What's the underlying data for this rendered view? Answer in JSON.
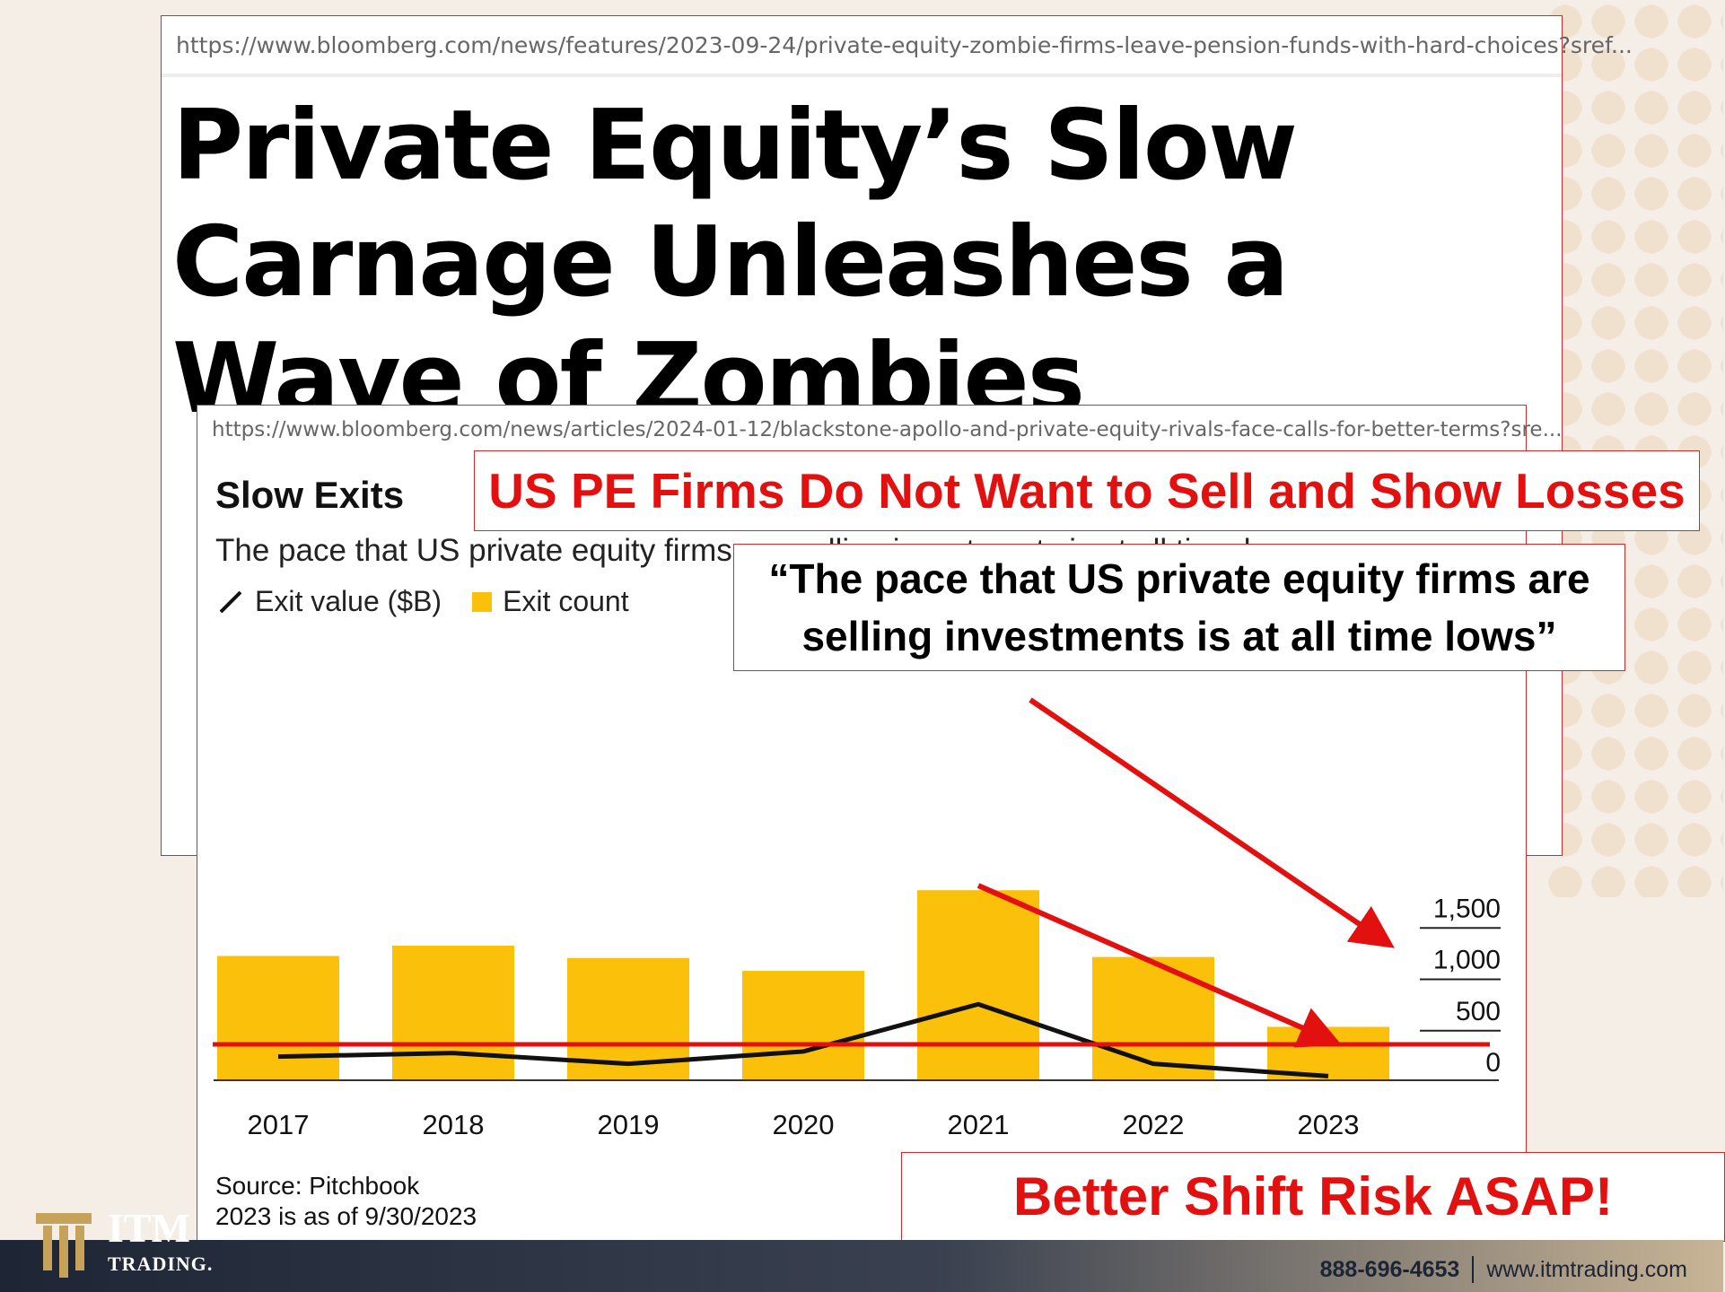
{
  "article1": {
    "url": "https://www.bloomberg.com/news/features/2023-09-24/private-equity-zombie-firms-leave-pension-funds-with-hard-choices?sref...",
    "headline": "Private Equity’s Slow Carnage Unleashes a Wave of Zombies"
  },
  "article2": {
    "url": "https://www.bloomberg.com/news/articles/2024-01-12/blackstone-apollo-and-private-equity-rivals-face-calls-for-better-terms?sre..."
  },
  "chart_data": {
    "type": "bar",
    "title": "Slow Exits",
    "subtitle": "The pace that US private equity firms are selling investments is at all time lows",
    "categories": [
      "2017",
      "2018",
      "2019",
      "2020",
      "2021",
      "2022",
      "2023"
    ],
    "series": [
      {
        "name": "Exit count",
        "kind": "bar",
        "color": "#fbc10a",
        "values": [
          1210,
          1310,
          1190,
          1065,
          1850,
          1200,
          520
        ]
      },
      {
        "name": "Exit value ($B)",
        "kind": "line",
        "color": "#111111",
        "values": [
          230,
          265,
          160,
          280,
          740,
          160,
          40
        ]
      }
    ],
    "y_ticks": [
      "1,500",
      "1,000",
      "500",
      "0"
    ],
    "ylim": [
      0,
      1900
    ],
    "grid": false,
    "legend_position": "top-left",
    "source_lines": [
      "Source: Pitchbook",
      "2023 is as of 9/30/2023"
    ]
  },
  "overlays": {
    "banner": "US PE Firms Do Not Want to Sell and Show Losses",
    "quote": "“The pace that US private equity firms are selling investments is at all time lows”",
    "callout": "Better Shift Risk ASAP!",
    "accent_color": "#e31010"
  },
  "footer": {
    "logo_text": "ITM",
    "logo_sub": "TRADING.",
    "phone": "888-696-4653",
    "website": "www.itmtrading.com"
  }
}
